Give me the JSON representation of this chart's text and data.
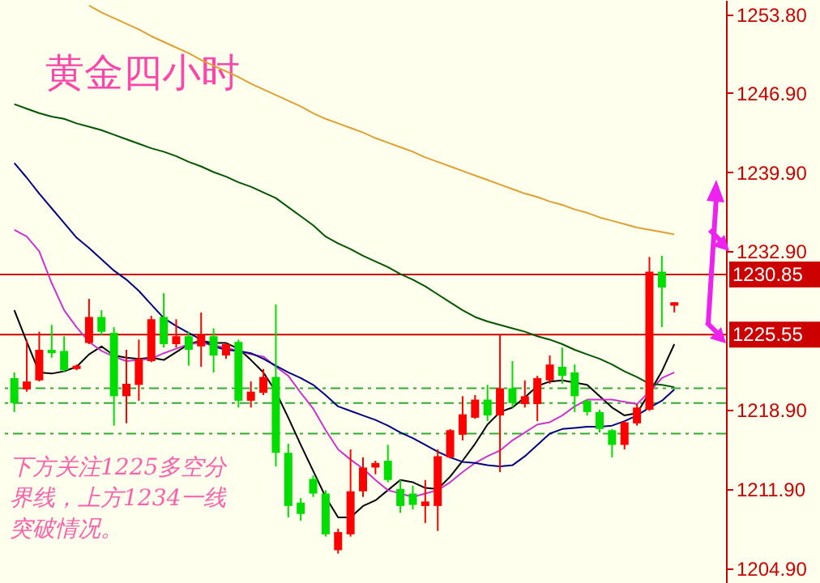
{
  "chart_data": {
    "type": "candlestick",
    "title": "黄金四小时",
    "categories": [
      null,
      null,
      null,
      null,
      null,
      null,
      null,
      null,
      null,
      null,
      null,
      null,
      null,
      null,
      null,
      null,
      null,
      null,
      null,
      null,
      null,
      null,
      null,
      null,
      null,
      null,
      null,
      null,
      null,
      null,
      null,
      null,
      null,
      null,
      null,
      null,
      null,
      null,
      null,
      null,
      null,
      null,
      null,
      null,
      null,
      null,
      null,
      null,
      null,
      null,
      null,
      null,
      null,
      null
    ],
    "ohlc": [
      [
        1221.7,
        1222.2,
        1218.7,
        1219.5
      ],
      [
        1220.7,
        1225.1,
        1220.5,
        1221.4
      ],
      [
        1221.5,
        1225.8,
        1221.4,
        1224.2
      ],
      [
        1224.2,
        1226.4,
        1223.5,
        1223.9
      ],
      [
        1224.1,
        1225.4,
        1222.2,
        1222.4
      ],
      [
        1222.5,
        1222.9,
        1222.4,
        1222.8
      ],
      [
        1224.8,
        1228.7,
        1224.7,
        1227.1
      ],
      [
        1227.1,
        1227.7,
        1225.5,
        1225.8
      ],
      [
        1225.7,
        1226.2,
        1217.5,
        1220.1
      ],
      [
        1220.1,
        1224.2,
        1217.7,
        1221.2
      ],
      [
        1221.1,
        1225.1,
        1219.7,
        1223.4
      ],
      [
        1223.2,
        1227.2,
        1223.1,
        1226.9
      ],
      [
        1227.1,
        1229.2,
        1224.4,
        1224.7
      ],
      [
        1224.7,
        1226.9,
        1224.4,
        1225.4
      ],
      [
        1225.4,
        1225.8,
        1222.8,
        1224.2
      ],
      [
        1224.5,
        1227.5,
        1222.7,
        1225.5
      ],
      [
        1225.4,
        1226.1,
        1222.2,
        1223.7
      ],
      [
        1223.7,
        1224.8,
        1223.4,
        1224.7
      ],
      [
        1224.9,
        1225.1,
        1219.1,
        1219.7
      ],
      [
        1219.7,
        1221.4,
        1219.1,
        1220.5
      ],
      [
        1220.4,
        1222.5,
        1220.2,
        1221.8
      ],
      [
        1221.8,
        1228.2,
        1213.9,
        1215.1
      ],
      [
        1215.1,
        1215.9,
        1209.4,
        1210.4
      ],
      [
        1210.7,
        1211.1,
        1209.1,
        1209.7
      ],
      [
        1212.8,
        1213.1,
        1211.2,
        1211.5
      ],
      [
        1211.5,
        1211.8,
        1207.7,
        1207.9
      ],
      [
        1206.5,
        1208.4,
        1206.2,
        1208.1
      ],
      [
        1207.9,
        1215.4,
        1207.7,
        1211.7
      ],
      [
        1211.7,
        1214.7,
        1211.2,
        1213.8
      ],
      [
        1213.8,
        1214.4,
        1213.2,
        1214.2
      ],
      [
        1214.4,
        1215.8,
        1212.5,
        1212.7
      ],
      [
        1211.9,
        1212.7,
        1209.8,
        1210.4
      ],
      [
        1211.5,
        1212.2,
        1210.1,
        1210.5
      ],
      [
        1210.4,
        1212.7,
        1208.9,
        1210.8
      ],
      [
        1210.4,
        1215.4,
        1208.2,
        1214.8
      ],
      [
        1214.7,
        1217.2,
        1214.6,
        1217.1
      ],
      [
        1216.7,
        1220.1,
        1216.2,
        1218.5
      ],
      [
        1218.2,
        1220.2,
        1218.1,
        1219.8
      ],
      [
        1219.8,
        1221.1,
        1217.9,
        1218.4
      ],
      [
        1218.4,
        1225.5,
        1213.4,
        1220.8
      ],
      [
        1220.8,
        1223.2,
        1219.1,
        1219.5
      ],
      [
        1219.4,
        1221.5,
        1219.1,
        1220.1
      ],
      [
        1219.4,
        1221.9,
        1217.9,
        1221.7
      ],
      [
        1221.5,
        1223.7,
        1221.2,
        1222.9
      ],
      [
        1222.7,
        1224.4,
        1221.2,
        1221.9
      ],
      [
        1222.2,
        1222.9,
        1218.7,
        1220.1
      ],
      [
        1219.7,
        1219.8,
        1218.4,
        1218.7
      ],
      [
        1218.7,
        1218.9,
        1216.9,
        1217.2
      ],
      [
        1217.1,
        1217.2,
        1214.7,
        1215.8
      ],
      [
        1215.8,
        1217.9,
        1215.4,
        1217.8
      ],
      [
        1217.7,
        1219.4,
        1217.5,
        1219.1
      ],
      [
        1218.9,
        1232.4,
        1218.8,
        1231.1
      ],
      [
        1231.1,
        1232.5,
        1226.2,
        1229.7
      ],
      [
        1228.1,
        1228.4,
        1227.5,
        1228.4
      ]
    ],
    "colors": [
      "#00dd00",
      "#ff0000",
      "#ff0000",
      "#00dd00",
      "#00dd00",
      "#ff0000",
      "#ff0000",
      "#00dd00",
      "#00dd00",
      "#ff0000",
      "#ff0000",
      "#ff0000",
      "#00dd00",
      "#ff0000",
      "#00dd00",
      "#ff0000",
      "#00dd00",
      "#ff0000",
      "#00dd00",
      "#ff0000",
      "#ff0000",
      "#00dd00",
      "#00dd00",
      "#00dd00",
      "#00dd00",
      "#00dd00",
      "#ff0000",
      "#ff0000",
      "#ff0000",
      "#ff0000",
      "#00dd00",
      "#00dd00",
      "#00dd00",
      "#ff0000",
      "#ff0000",
      "#ff0000",
      "#ff0000",
      "#ff0000",
      "#00dd00",
      "#ff0000",
      "#00dd00",
      "#ff0000",
      "#ff0000",
      "#ff0000",
      "#00dd00",
      "#00dd00",
      "#00dd00",
      "#00dd00",
      "#00dd00",
      "#ff0000",
      "#ff0000",
      "#ff0000",
      "#00dd00",
      "#ff0000"
    ],
    "series": [
      {
        "type": "line",
        "color": "#000000",
        "values": [
          1227.7,
          1224.9,
          1222.2,
          1222.1,
          1222.3,
          1222.7,
          1223.8,
          1224.5,
          1223.7,
          1223.5,
          1223.4,
          1223.5,
          1223.3,
          1224.0,
          1224.7,
          1225.0,
          1224.8,
          1224.8,
          1224.3,
          1223.3,
          1222.2,
          1220.5,
          1218.2,
          1215.8,
          1213.5,
          1211.2,
          1209.4,
          1209.4,
          1210.4,
          1210.9,
          1211.8,
          1212.7,
          1212.5,
          1212.0,
          1211.9,
          1213.0,
          1214.4,
          1215.9,
          1217.6,
          1218.7,
          1219.1,
          1220.0,
          1221.0,
          1221.4,
          1221.5,
          1221.3,
          1221.1,
          1220.1,
          1219.1,
          1218.4,
          1218.6,
          1220.4,
          1222.3,
          1224.7
        ]
      },
      {
        "type": "line",
        "color": "#cc33cc",
        "values": [
          1234.8,
          1234.2,
          1232.9,
          1230.1,
          1227.7,
          1226.2,
          1224.9,
          1224.1,
          1223.6,
          1223.2,
          1223.3,
          1223.4,
          1223.9,
          1224.3,
          1224.7,
          1224.8,
          1224.6,
          1224.4,
          1224.1,
          1223.8,
          1223.6,
          1222.7,
          1221.9,
          1220.4,
          1219.0,
          1217.1,
          1215.4,
          1214.5,
          1213.7,
          1212.7,
          1211.8,
          1211.5,
          1211.2,
          1211.5,
          1211.8,
          1212.5,
          1213.4,
          1214.2,
          1214.8,
          1215.3,
          1216.2,
          1216.9,
          1217.6,
          1217.8,
          1218.4,
          1219.2,
          1219.8,
          1219.8,
          1219.8,
          1219.6,
          1219.4,
          1220.5,
          1221.7,
          1222.2
        ]
      },
      {
        "type": "line",
        "color": "#000080",
        "values": [
          1240.7,
          1239.4,
          1238.0,
          1236.7,
          1235.4,
          1234.1,
          1233.2,
          1232.2,
          1231.2,
          1230.4,
          1229.4,
          1228.2,
          1227.0,
          1226.3,
          1225.7,
          1225.1,
          1224.5,
          1224.2,
          1224.1,
          1223.9,
          1223.4,
          1222.8,
          1222.2,
          1221.7,
          1221.1,
          1220.2,
          1219.2,
          1218.8,
          1218.4,
          1218.0,
          1217.5,
          1216.9,
          1216.4,
          1215.8,
          1215.2,
          1214.7,
          1214.3,
          1214.2,
          1214.0,
          1213.9,
          1214.0,
          1214.8,
          1215.8,
          1216.8,
          1217.2,
          1217.3,
          1217.4,
          1217.4,
          1217.5,
          1217.9,
          1218.4,
          1219.1,
          1219.7,
          1220.7
        ]
      },
      {
        "type": "line",
        "color": "#005500",
        "values": [
          1245.9,
          1245.5,
          1245.1,
          1244.8,
          1244.6,
          1244.2,
          1243.9,
          1243.6,
          1243.2,
          1242.8,
          1242.4,
          1242.0,
          1241.7,
          1241.3,
          1240.8,
          1240.4,
          1239.9,
          1239.5,
          1239.0,
          1238.6,
          1238.1,
          1237.6,
          1236.8,
          1236.0,
          1235.2,
          1234.2,
          1233.6,
          1233.1,
          1232.5,
          1232.0,
          1231.5,
          1230.9,
          1230.4,
          1229.8,
          1229.1,
          1228.4,
          1227.7,
          1227.1,
          1226.7,
          1226.4,
          1226.1,
          1225.8,
          1225.4,
          1225.1,
          1224.7,
          1224.2,
          1223.8,
          1223.4,
          1222.9,
          1222.3,
          1221.8,
          1221.2,
          1221.1,
          1220.9
        ]
      },
      {
        "type": "line",
        "color": "#e0a030",
        "values": [
          null,
          null,
          null,
          null,
          null,
          null,
          1254.6,
          1254.0,
          1253.5,
          1253.0,
          1252.5,
          1251.9,
          1251.4,
          1250.9,
          1250.4,
          1249.8,
          1249.3,
          1248.8,
          1248.3,
          1247.7,
          1247.2,
          1246.7,
          1246.2,
          1245.7,
          1245.1,
          1244.6,
          1244.2,
          1243.8,
          1243.4,
          1242.9,
          1242.5,
          1242.1,
          1241.7,
          1241.2,
          1240.8,
          1240.4,
          1240.0,
          1239.6,
          1239.2,
          1238.8,
          1238.4,
          1238.0,
          1237.7,
          1237.3,
          1237.0,
          1236.6,
          1236.3,
          1235.9,
          1235.6,
          1235.3,
          1235.0,
          1234.8,
          1234.6,
          1234.4
        ]
      }
    ],
    "ylim": [
      1203.6,
      1255.1
    ],
    "yticks": [
      {
        "value": 1204.9,
        "label": "1204.90"
      },
      {
        "value": 1211.9,
        "label": "1211.90"
      },
      {
        "value": 1218.9,
        "label": "1218.90"
      },
      {
        "value": 1232.9,
        "label": "1232.90"
      },
      {
        "value": 1239.9,
        "label": "1239.90"
      },
      {
        "value": 1246.9,
        "label": "1246.90"
      },
      {
        "value": 1253.8,
        "label": "1253.80"
      }
    ],
    "tick_labels": "y",
    "ref_lines": [
      {
        "axis": "y",
        "value": 1230.85,
        "label": "1230.85",
        "color": "#cc0000"
      },
      {
        "axis": "y",
        "value": 1225.55,
        "label": "1225.55",
        "color": "#cc0000"
      },
      {
        "axis": "y",
        "value": 1220.8,
        "color": "#33aa33",
        "line_style": "dashed"
      },
      {
        "axis": "y",
        "value": 1219.5,
        "color": "#33aa33",
        "line_style": "dashed"
      },
      {
        "axis": "y",
        "value": 1216.8,
        "color": "#33aa33",
        "line_style": "dashed"
      }
    ],
    "annotations": [
      "下方关注1225多空分界线，上方1234一线突破情况。"
    ]
  }
}
